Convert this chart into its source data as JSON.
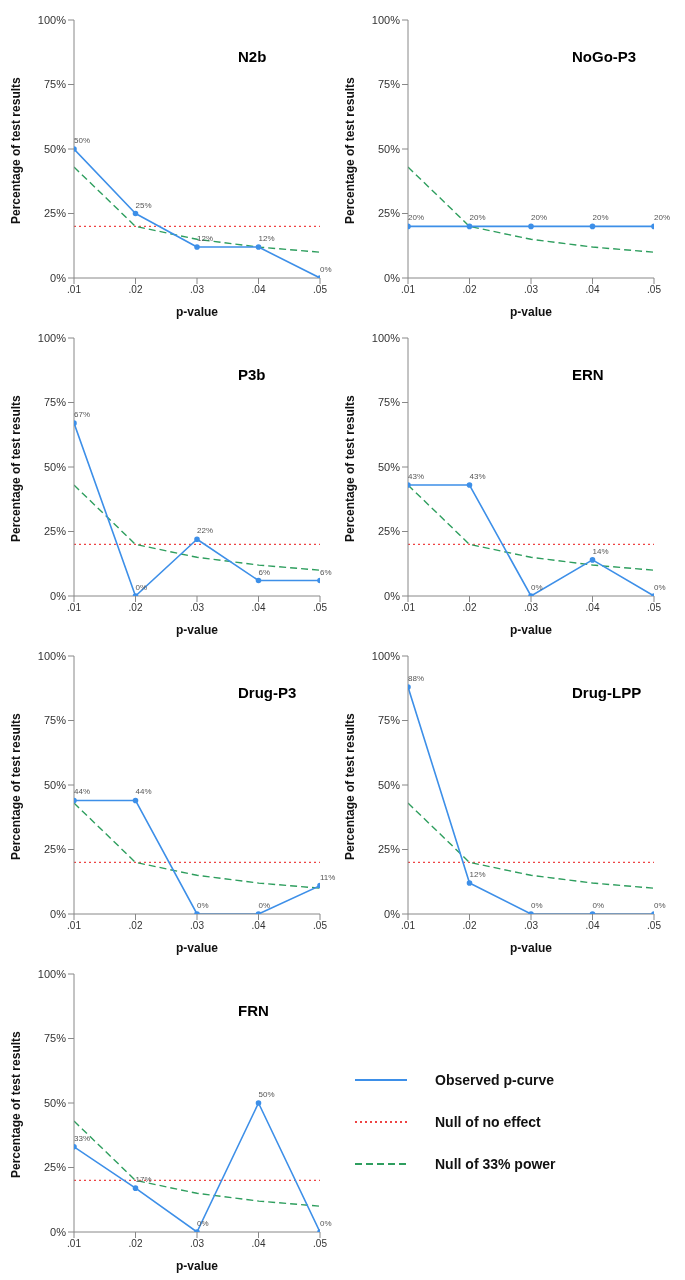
{
  "chart_data": [
    {
      "type": "line",
      "title": "N2b",
      "xlabel": "p-value",
      "ylabel": "Percentage of test results",
      "x": [
        0.01,
        0.02,
        0.03,
        0.04,
        0.05
      ],
      "xlim": [
        0.01,
        0.05
      ],
      "xticks": [
        {
          "value": 0.01,
          "label": ".01"
        },
        {
          "value": 0.02,
          "label": ".02"
        },
        {
          "value": 0.03,
          "label": ".03"
        },
        {
          "value": 0.04,
          "label": ".04"
        },
        {
          "value": 0.05,
          "label": ".05"
        }
      ],
      "ylim": [
        0,
        100
      ],
      "yticks": [
        {
          "value": 0,
          "label": "0%"
        },
        {
          "value": 25,
          "label": "25%"
        },
        {
          "value": 50,
          "label": "50%"
        },
        {
          "value": 75,
          "label": "75%"
        },
        {
          "value": 100,
          "label": "100%"
        }
      ],
      "legend": false,
      "series": [
        {
          "color": "#ee4444",
          "values": [
            20,
            20,
            20,
            20,
            20
          ],
          "line_style": "dotted",
          "marker": "none"
        },
        {
          "color": "#2e9e5e",
          "values": [
            43,
            20,
            15,
            12,
            10
          ],
          "line_style": "dashed",
          "marker": "none"
        },
        {
          "color": "#3d8fe8",
          "values": [
            50,
            25,
            12,
            12,
            0
          ],
          "line_style": "solid",
          "marker": "circle",
          "value_labels": [
            "50%",
            "25%",
            "12%",
            "12%",
            "0%"
          ]
        }
      ]
    },
    {
      "type": "line",
      "title": "NoGo-P3",
      "xlabel": "p-value",
      "ylabel": "Percentage of test results",
      "x": [
        0.01,
        0.02,
        0.03,
        0.04,
        0.05
      ],
      "xlim": [
        0.01,
        0.05
      ],
      "xticks": [
        {
          "value": 0.01,
          "label": ".01"
        },
        {
          "value": 0.02,
          "label": ".02"
        },
        {
          "value": 0.03,
          "label": ".03"
        },
        {
          "value": 0.04,
          "label": ".04"
        },
        {
          "value": 0.05,
          "label": ".05"
        }
      ],
      "ylim": [
        0,
        100
      ],
      "yticks": [
        {
          "value": 0,
          "label": "0%"
        },
        {
          "value": 25,
          "label": "25%"
        },
        {
          "value": 50,
          "label": "50%"
        },
        {
          "value": 75,
          "label": "75%"
        },
        {
          "value": 100,
          "label": "100%"
        }
      ],
      "legend": false,
      "series": [
        {
          "color": "#ee4444",
          "values": [
            null,
            null,
            null,
            null,
            null
          ],
          "line_style": "dotted",
          "marker": "none"
        },
        {
          "color": "#2e9e5e",
          "values": [
            43,
            20,
            15,
            12,
            10
          ],
          "line_style": "dashed",
          "marker": "none"
        },
        {
          "color": "#3d8fe8",
          "values": [
            20,
            20,
            20,
            20,
            20
          ],
          "line_style": "solid",
          "marker": "circle",
          "value_labels": [
            "20%",
            "20%",
            "20%",
            "20%",
            "20%"
          ]
        }
      ]
    },
    {
      "type": "line",
      "title": "P3b",
      "xlabel": "p-value",
      "ylabel": "Percentage of test results",
      "x": [
        0.01,
        0.02,
        0.03,
        0.04,
        0.05
      ],
      "xlim": [
        0.01,
        0.05
      ],
      "xticks": [
        {
          "value": 0.01,
          "label": ".01"
        },
        {
          "value": 0.02,
          "label": ".02"
        },
        {
          "value": 0.03,
          "label": ".03"
        },
        {
          "value": 0.04,
          "label": ".04"
        },
        {
          "value": 0.05,
          "label": ".05"
        }
      ],
      "ylim": [
        0,
        100
      ],
      "yticks": [
        {
          "value": 0,
          "label": "0%"
        },
        {
          "value": 25,
          "label": "25%"
        },
        {
          "value": 50,
          "label": "50%"
        },
        {
          "value": 75,
          "label": "75%"
        },
        {
          "value": 100,
          "label": "100%"
        }
      ],
      "legend": false,
      "series": [
        {
          "color": "#ee4444",
          "values": [
            20,
            20,
            20,
            20,
            20
          ],
          "line_style": "dotted",
          "marker": "none"
        },
        {
          "color": "#2e9e5e",
          "values": [
            43,
            20,
            15,
            12,
            10
          ],
          "line_style": "dashed",
          "marker": "none"
        },
        {
          "color": "#3d8fe8",
          "values": [
            67,
            0,
            22,
            6,
            6
          ],
          "line_style": "solid",
          "marker": "circle",
          "value_labels": [
            "67%",
            "0%",
            "22%",
            "6%",
            "6%"
          ]
        }
      ]
    },
    {
      "type": "line",
      "title": "ERN",
      "xlabel": "p-value",
      "ylabel": "Percentage of test results",
      "x": [
        0.01,
        0.02,
        0.03,
        0.04,
        0.05
      ],
      "xlim": [
        0.01,
        0.05
      ],
      "xticks": [
        {
          "value": 0.01,
          "label": ".01"
        },
        {
          "value": 0.02,
          "label": ".02"
        },
        {
          "value": 0.03,
          "label": ".03"
        },
        {
          "value": 0.04,
          "label": ".04"
        },
        {
          "value": 0.05,
          "label": ".05"
        }
      ],
      "ylim": [
        0,
        100
      ],
      "yticks": [
        {
          "value": 0,
          "label": "0%"
        },
        {
          "value": 25,
          "label": "25%"
        },
        {
          "value": 50,
          "label": "50%"
        },
        {
          "value": 75,
          "label": "75%"
        },
        {
          "value": 100,
          "label": "100%"
        }
      ],
      "legend": false,
      "series": [
        {
          "color": "#ee4444",
          "values": [
            20,
            20,
            20,
            20,
            20
          ],
          "line_style": "dotted",
          "marker": "none"
        },
        {
          "color": "#2e9e5e",
          "values": [
            43,
            20,
            15,
            12,
            10
          ],
          "line_style": "dashed",
          "marker": "none"
        },
        {
          "color": "#3d8fe8",
          "values": [
            43,
            43,
            0,
            14,
            0
          ],
          "line_style": "solid",
          "marker": "circle",
          "value_labels": [
            "43%",
            "43%",
            "0%",
            "14%",
            "0%"
          ]
        }
      ]
    },
    {
      "type": "line",
      "title": "Drug-P3",
      "xlabel": "p-value",
      "ylabel": "Percentage of test results",
      "x": [
        0.01,
        0.02,
        0.03,
        0.04,
        0.05
      ],
      "xlim": [
        0.01,
        0.05
      ],
      "xticks": [
        {
          "value": 0.01,
          "label": ".01"
        },
        {
          "value": 0.02,
          "label": ".02"
        },
        {
          "value": 0.03,
          "label": ".03"
        },
        {
          "value": 0.04,
          "label": ".04"
        },
        {
          "value": 0.05,
          "label": ".05"
        }
      ],
      "ylim": [
        0,
        100
      ],
      "yticks": [
        {
          "value": 0,
          "label": "0%"
        },
        {
          "value": 25,
          "label": "25%"
        },
        {
          "value": 50,
          "label": "50%"
        },
        {
          "value": 75,
          "label": "75%"
        },
        {
          "value": 100,
          "label": "100%"
        }
      ],
      "legend": false,
      "series": [
        {
          "color": "#ee4444",
          "values": [
            20,
            20,
            20,
            20,
            20
          ],
          "line_style": "dotted",
          "marker": "none"
        },
        {
          "color": "#2e9e5e",
          "values": [
            43,
            20,
            15,
            12,
            10
          ],
          "line_style": "dashed",
          "marker": "none"
        },
        {
          "color": "#3d8fe8",
          "values": [
            44,
            44,
            0,
            0,
            11
          ],
          "line_style": "solid",
          "marker": "circle",
          "value_labels": [
            "44%",
            "44%",
            "0%",
            "0%",
            "11%"
          ]
        }
      ]
    },
    {
      "type": "line",
      "title": "Drug-LPP",
      "xlabel": "p-value",
      "ylabel": "Percentage of test results",
      "x": [
        0.01,
        0.02,
        0.03,
        0.04,
        0.05
      ],
      "xlim": [
        0.01,
        0.05
      ],
      "xticks": [
        {
          "value": 0.01,
          "label": ".01"
        },
        {
          "value": 0.02,
          "label": ".02"
        },
        {
          "value": 0.03,
          "label": ".03"
        },
        {
          "value": 0.04,
          "label": ".04"
        },
        {
          "value": 0.05,
          "label": ".05"
        }
      ],
      "ylim": [
        0,
        100
      ],
      "yticks": [
        {
          "value": 0,
          "label": "0%"
        },
        {
          "value": 25,
          "label": "25%"
        },
        {
          "value": 50,
          "label": "50%"
        },
        {
          "value": 75,
          "label": "75%"
        },
        {
          "value": 100,
          "label": "100%"
        }
      ],
      "legend": false,
      "series": [
        {
          "color": "#ee4444",
          "values": [
            20,
            20,
            20,
            20,
            20
          ],
          "line_style": "dotted",
          "marker": "none"
        },
        {
          "color": "#2e9e5e",
          "values": [
            43,
            20,
            15,
            12,
            10
          ],
          "line_style": "dashed",
          "marker": "none"
        },
        {
          "color": "#3d8fe8",
          "values": [
            88,
            12,
            0,
            0,
            0
          ],
          "line_style": "solid",
          "marker": "circle",
          "value_labels": [
            "88%",
            "12%",
            "0%",
            "0%",
            "0%"
          ]
        }
      ]
    },
    {
      "type": "line",
      "title": "FRN",
      "xlabel": "p-value",
      "ylabel": "Percentage of test results",
      "x": [
        0.01,
        0.02,
        0.03,
        0.04,
        0.05
      ],
      "xlim": [
        0.01,
        0.05
      ],
      "xticks": [
        {
          "value": 0.01,
          "label": ".01"
        },
        {
          "value": 0.02,
          "label": ".02"
        },
        {
          "value": 0.03,
          "label": ".03"
        },
        {
          "value": 0.04,
          "label": ".04"
        },
        {
          "value": 0.05,
          "label": ".05"
        }
      ],
      "ylim": [
        0,
        100
      ],
      "yticks": [
        {
          "value": 0,
          "label": "0%"
        },
        {
          "value": 25,
          "label": "25%"
        },
        {
          "value": 50,
          "label": "50%"
        },
        {
          "value": 75,
          "label": "75%"
        },
        {
          "value": 100,
          "label": "100%"
        }
      ],
      "legend": "right",
      "series": [
        {
          "name": "Observed p-curve",
          "color": "#3d8fe8",
          "values": [
            33,
            17,
            0,
            50,
            0
          ],
          "line_style": "solid",
          "marker": "circle",
          "value_labels": [
            "33%",
            "17%",
            "0%",
            "50%",
            "0%"
          ]
        },
        {
          "name": "Null of no effect",
          "color": "#ee4444",
          "values": [
            20,
            20,
            20,
            20,
            20
          ],
          "line_style": "dotted",
          "marker": "none"
        },
        {
          "name": "Null of 33% power",
          "color": "#2e9e5e",
          "values": [
            43,
            20,
            15,
            12,
            10
          ],
          "line_style": "dashed",
          "marker": "none"
        }
      ]
    }
  ]
}
